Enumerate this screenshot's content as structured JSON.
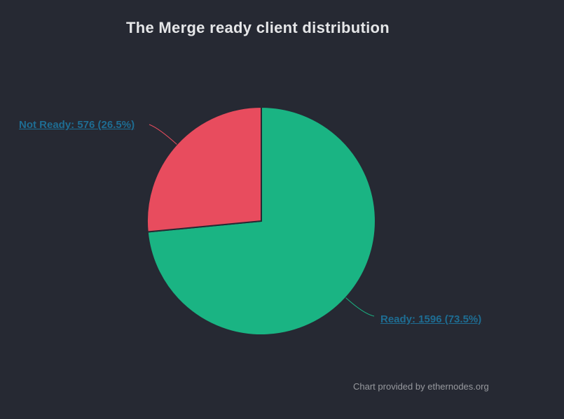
{
  "page": {
    "credits": "Chart provided by ethernodes.org"
  },
  "chart_data": {
    "type": "pie",
    "title": "The Merge ready client distribution",
    "slices": [
      {
        "name": "Ready",
        "value": 1596,
        "percent": 73.5,
        "label": "Ready: 1596 (73.5%)",
        "color": "#1ab483"
      },
      {
        "name": "Not Ready",
        "value": 576,
        "percent": 26.5,
        "label": "Not Ready: 576 (26.5%)",
        "color": "#e84c5e"
      }
    ],
    "start_angle": 0,
    "direction": "clockwise",
    "legend": "none",
    "data_labels": "outside-with-connectors",
    "background": "#262933",
    "label_color": "#1e6d93"
  }
}
